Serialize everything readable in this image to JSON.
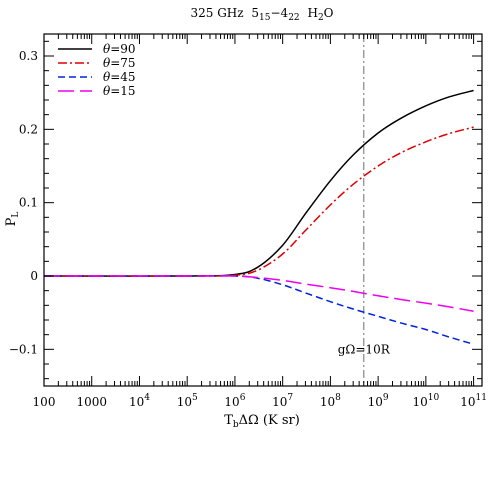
{
  "chart_data": {
    "type": "line",
    "title_parts": {
      "freq": "325 GHz",
      "upper_level": "5",
      "upper_sub": "15",
      "dash": "−",
      "lower_level": "4",
      "lower_sub": "22",
      "molecule_pre": "H",
      "molecule_sub": "2",
      "molecule_post": "O"
    },
    "ylabel": {
      "base": "P",
      "sub": "L"
    },
    "xlabel": {
      "base": "T",
      "sub": "b",
      "rest": "ΔΩ (K sr)"
    },
    "x_scale": "log",
    "xlim": [
      100,
      150000000000.0
    ],
    "ylim": [
      -0.15,
      0.33
    ],
    "xticks": [
      {
        "value": 100,
        "label": "100"
      },
      {
        "value": 1000,
        "label": "1000"
      },
      {
        "value": 10000.0,
        "label": "10",
        "exp": "4"
      },
      {
        "value": 100000.0,
        "label": "10",
        "exp": "5"
      },
      {
        "value": 1000000.0,
        "label": "10",
        "exp": "6"
      },
      {
        "value": 10000000.0,
        "label": "10",
        "exp": "7"
      },
      {
        "value": 100000000.0,
        "label": "10",
        "exp": "8"
      },
      {
        "value": 1000000000.0,
        "label": "10",
        "exp": "9"
      },
      {
        "value": 10000000000.0,
        "label": "10",
        "exp": "10"
      },
      {
        "value": 100000000000.0,
        "label": "10",
        "exp": "11"
      }
    ],
    "yticks": [
      {
        "value": 0.3,
        "label": "0.3"
      },
      {
        "value": 0.2,
        "label": "0.2"
      },
      {
        "value": 0.1,
        "label": "0.1"
      },
      {
        "value": 0,
        "label": "0"
      },
      {
        "value": -0.1,
        "label": "−0.1"
      }
    ],
    "legend_position": "top-left",
    "grid": false,
    "series": [
      {
        "name_symbol": "θ",
        "name_value": "=90",
        "color": "#000000",
        "dash": "",
        "x": [
          100,
          100000.0,
          1000000.0,
          3000000.0,
          10000000.0,
          30000000.0,
          100000000.0,
          300000000.0,
          1000000000.0,
          3000000000.0,
          10000000000.0,
          30000000000.0,
          100000000000.0
        ],
        "y": [
          0,
          0,
          0.002,
          0.012,
          0.042,
          0.085,
          0.13,
          0.165,
          0.195,
          0.215,
          0.232,
          0.244,
          0.253
        ]
      },
      {
        "name_symbol": "θ",
        "name_value": "=75",
        "color": "#dd0000",
        "dash": "9,3,2,3",
        "x": [
          100,
          100000.0,
          1000000.0,
          3000000.0,
          10000000.0,
          30000000.0,
          100000000.0,
          300000000.0,
          1000000000.0,
          3000000000.0,
          10000000000.0,
          30000000000.0,
          100000000000.0
        ],
        "y": [
          0,
          0,
          0.001,
          0.008,
          0.03,
          0.062,
          0.097,
          0.125,
          0.15,
          0.168,
          0.183,
          0.194,
          0.203
        ]
      },
      {
        "name_symbol": "θ",
        "name_value": "=45",
        "color": "#0022dd",
        "dash": "7,4",
        "x": [
          100,
          100000.0,
          1000000.0,
          3000000.0,
          10000000.0,
          30000000.0,
          100000000.0,
          300000000.0,
          1000000000.0,
          3000000000.0,
          10000000000.0,
          30000000000.0,
          100000000000.0
        ],
        "y": [
          0,
          0,
          0,
          -0.003,
          -0.012,
          -0.023,
          -0.035,
          -0.045,
          -0.055,
          -0.064,
          -0.073,
          -0.083,
          -0.093
        ]
      },
      {
        "name_symbol": "θ",
        "name_value": "=15",
        "color": "#ee00ee",
        "dash": "16,6",
        "x": [
          100,
          100000.0,
          1000000.0,
          3000000.0,
          10000000.0,
          30000000.0,
          100000000.0,
          300000000.0,
          1000000000.0,
          3000000000.0,
          10000000000.0,
          30000000000.0,
          100000000000.0
        ],
        "y": [
          0,
          0,
          0,
          -0.002,
          -0.006,
          -0.011,
          -0.016,
          -0.021,
          -0.027,
          -0.032,
          -0.037,
          -0.042,
          -0.048
        ]
      }
    ],
    "vline": {
      "x": 500000000.0,
      "color": "#888888",
      "dash": "8,3,2,3"
    },
    "annotation": {
      "text": "gΩ=10R",
      "x": 500000000.0,
      "y": -0.1
    }
  }
}
